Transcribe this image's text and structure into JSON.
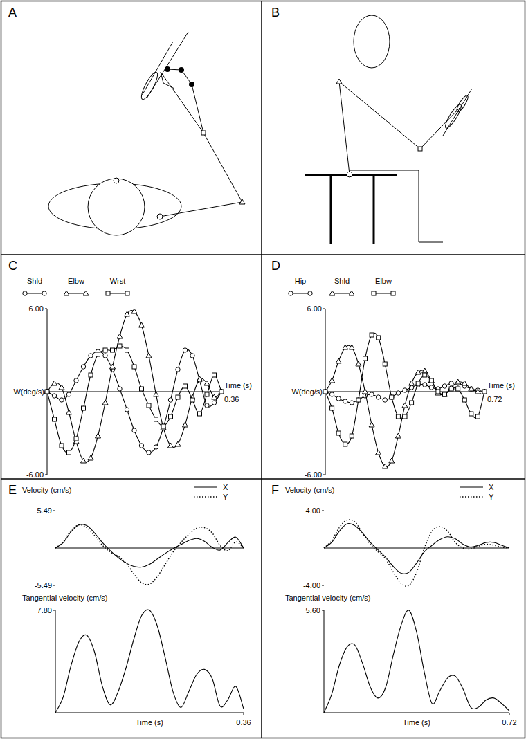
{
  "diagrams": [
    {
      "label": "A"
    },
    {
      "label": "B"
    }
  ],
  "chart_data": [
    {
      "type": "line",
      "title": "C",
      "x_label": "Time (s)",
      "y_label": "W(deg/s)",
      "x": [
        0,
        0.015,
        0.03,
        0.045,
        0.06,
        0.075,
        0.09,
        0.105,
        0.12,
        0.135,
        0.15,
        0.165,
        0.18,
        0.195,
        0.21,
        0.225,
        0.24,
        0.255,
        0.27,
        0.285,
        0.3,
        0.315,
        0.33,
        0.345,
        0.36
      ],
      "xlim": [
        0,
        0.36
      ],
      "xticks": [
        0.36
      ],
      "ylim": [
        -6,
        6
      ],
      "yticks": [
        {
          "value": 6,
          "label": "6.00"
        },
        {
          "value": -6,
          "label": "-6.00"
        }
      ],
      "legend": "top-left",
      "series": [
        {
          "name": "Shld",
          "color": "#000000",
          "marker": "circle",
          "line_style": "solid",
          "values": [
            0,
            -0.3,
            -0.6,
            -0.2,
            0.8,
            1.8,
            2.6,
            2.9,
            2.6,
            1.6,
            0.2,
            -1.3,
            -2.8,
            -3.9,
            -4.4,
            -4.0,
            -2.6,
            -0.6,
            1.6,
            3.0,
            2.6,
            0.8,
            -1.0,
            -0.8,
            0
          ]
        },
        {
          "name": "Elbw",
          "color": "#000000",
          "marker": "triangle",
          "line_style": "solid",
          "values": [
            0,
            0.6,
            0.3,
            -1.5,
            -3.6,
            -5.0,
            -4.8,
            -3.2,
            -0.8,
            1.8,
            4.0,
            5.6,
            5.8,
            4.8,
            2.6,
            -0.2,
            -2.6,
            -3.9,
            -3.8,
            -2.4,
            -0.4,
            0.9,
            0.6,
            -0.4,
            0
          ]
        },
        {
          "name": "Wrst",
          "color": "#000000",
          "marker": "square",
          "line_style": "solid",
          "values": [
            0,
            -2.0,
            -3.9,
            -4.4,
            -3.4,
            -1.2,
            1.2,
            2.7,
            3.0,
            3.0,
            3.3,
            3.0,
            1.8,
            0.2,
            -1.0,
            -2.0,
            -2.5,
            -1.8,
            -0.4,
            0.4,
            -0.6,
            -1.6,
            -0.2,
            1.2,
            0
          ]
        }
      ]
    },
    {
      "type": "line",
      "title": "D",
      "x_label": "Time (s)",
      "y_label": "W(deg/s)",
      "x": [
        0,
        0.03,
        0.06,
        0.09,
        0.12,
        0.15,
        0.18,
        0.21,
        0.24,
        0.27,
        0.3,
        0.33,
        0.36,
        0.39,
        0.42,
        0.45,
        0.48,
        0.51,
        0.54,
        0.57,
        0.6,
        0.63,
        0.66,
        0.69,
        0.72
      ],
      "xlim": [
        0,
        0.72
      ],
      "xticks": [
        0.72
      ],
      "ylim": [
        -6,
        6
      ],
      "yticks": [
        {
          "value": 6,
          "label": "6.00"
        },
        {
          "value": -6,
          "label": "-6.00"
        }
      ],
      "legend": "top-left",
      "series": [
        {
          "name": "Hip",
          "color": "#000000",
          "marker": "circle",
          "line_style": "solid",
          "values": [
            0,
            -0.2,
            -0.5,
            -0.7,
            -0.8,
            -0.6,
            -0.3,
            -0.2,
            -0.4,
            -0.6,
            -0.4,
            -0.1,
            0.1,
            0.3,
            0.5,
            0.5,
            0.3,
            0.2,
            0.4,
            0.6,
            0.6,
            0.4,
            0.2,
            0.1,
            0
          ]
        },
        {
          "name": "Shld",
          "color": "#000000",
          "marker": "triangle",
          "line_style": "solid",
          "values": [
            0,
            0.8,
            2.2,
            3.2,
            3.2,
            2.0,
            0.0,
            -2.4,
            -4.4,
            -5.4,
            -5.0,
            -3.2,
            -1.0,
            0.6,
            1.4,
            1.5,
            0.8,
            -0.1,
            -0.2,
            0.3,
            0.7,
            0.6,
            0.2,
            0.0,
            0
          ]
        },
        {
          "name": "Elbw",
          "color": "#000000",
          "marker": "square",
          "line_style": "solid",
          "values": [
            0,
            -1.2,
            -3.0,
            -3.8,
            -3.2,
            -0.6,
            2.4,
            4.1,
            3.9,
            2.0,
            -0.4,
            -1.8,
            -1.8,
            -0.8,
            0.6,
            1.2,
            0.8,
            0.0,
            -0.2,
            0.2,
            0.2,
            -0.6,
            -1.6,
            -1.8,
            0
          ]
        }
      ]
    },
    {
      "type": "line",
      "title": "E",
      "y_label": "Velocity (cm/s)",
      "x": [
        0,
        0.015,
        0.03,
        0.045,
        0.06,
        0.075,
        0.09,
        0.105,
        0.12,
        0.135,
        0.15,
        0.165,
        0.18,
        0.195,
        0.21,
        0.225,
        0.24,
        0.255,
        0.27,
        0.285,
        0.3,
        0.315,
        0.33,
        0.345,
        0.36
      ],
      "xlim": [
        0,
        0.36
      ],
      "ylim": [
        -5.49,
        5.49
      ],
      "yticks": [
        {
          "value": 5.49,
          "label": "5.49"
        },
        {
          "value": -5.49,
          "label": "-5.49"
        }
      ],
      "tick_labels": "y",
      "legend": "top-right",
      "series": [
        {
          "name": "X",
          "color": "#000000",
          "line_style": "solid",
          "values": [
            0,
            0.8,
            2.4,
            3.4,
            3.3,
            2.2,
            0.8,
            -0.4,
            -1.4,
            -2.2,
            -2.7,
            -2.8,
            -2.4,
            -1.6,
            -0.8,
            -0.1,
            0.5,
            1.1,
            1.4,
            1.0,
            0.1,
            -0.3,
            0.8,
            1.6,
            0
          ]
        },
        {
          "name": "Y",
          "color": "#000000",
          "line_style": "dotted",
          "values": [
            0,
            0.9,
            2.6,
            3.4,
            3.0,
            1.8,
            0.4,
            -0.6,
            -1.2,
            -2.2,
            -3.8,
            -5.1,
            -5.3,
            -4.2,
            -2.4,
            -0.6,
            0.8,
            2.0,
            2.9,
            3.0,
            2.2,
            0.4,
            -0.4,
            0.9,
            0
          ]
        }
      ]
    },
    {
      "type": "line",
      "x_label": "Time (s)",
      "y_label": "Tangential velocity (cm/s)",
      "x": [
        0,
        0.015,
        0.03,
        0.045,
        0.06,
        0.075,
        0.09,
        0.105,
        0.12,
        0.135,
        0.15,
        0.165,
        0.18,
        0.195,
        0.21,
        0.225,
        0.24,
        0.255,
        0.27,
        0.285,
        0.3,
        0.315,
        0.33,
        0.345,
        0.36
      ],
      "xlim": [
        0,
        0.36
      ],
      "xticks": [
        0.36
      ],
      "ylim": [
        0,
        7.8
      ],
      "yticks": [
        {
          "value": 7.8,
          "label": "7.80"
        }
      ],
      "series": [
        {
          "color": "#000000",
          "line_style": "solid",
          "values": [
            0,
            1.2,
            3.6,
            5.4,
            5.9,
            4.6,
            2.0,
            0.6,
            1.6,
            3.4,
            5.6,
            7.4,
            7.8,
            6.6,
            4.2,
            1.6,
            0.4,
            1.6,
            2.9,
            3.3,
            2.6,
            0.5,
            1.0,
            2.0,
            0.3
          ]
        }
      ]
    },
    {
      "type": "line",
      "title": "F",
      "y_label": "Velocity (cm/s)",
      "x": [
        0,
        0.03,
        0.06,
        0.09,
        0.12,
        0.15,
        0.18,
        0.21,
        0.24,
        0.27,
        0.3,
        0.33,
        0.36,
        0.39,
        0.42,
        0.45,
        0.48,
        0.51,
        0.54,
        0.57,
        0.6,
        0.63,
        0.66,
        0.69,
        0.72
      ],
      "xlim": [
        0,
        0.72
      ],
      "ylim": [
        -4,
        4
      ],
      "yticks": [
        {
          "value": 4,
          "label": "4.00"
        },
        {
          "value": -4,
          "label": "-4.00"
        }
      ],
      "tick_labels": "y",
      "legend": "top-right",
      "series": [
        {
          "name": "X",
          "color": "#000000",
          "line_style": "solid",
          "values": [
            0,
            0.6,
            1.8,
            2.6,
            2.4,
            1.6,
            0.6,
            -0.2,
            -1.0,
            -2.0,
            -2.7,
            -2.6,
            -1.6,
            -0.4,
            0.3,
            0.9,
            1.2,
            1.0,
            0.4,
            0.1,
            0.3,
            0.6,
            0.6,
            0.3,
            0
          ]
        },
        {
          "name": "Y",
          "color": "#000000",
          "line_style": "dotted",
          "values": [
            0,
            0.8,
            2.2,
            3.0,
            2.8,
            1.6,
            0.4,
            -0.4,
            -1.2,
            -2.6,
            -3.8,
            -4.0,
            -2.6,
            0.0,
            1.8,
            2.3,
            1.8,
            0.6,
            0.0,
            -0.1,
            0.2,
            0.4,
            0.3,
            0.1,
            0
          ]
        }
      ]
    },
    {
      "type": "line",
      "x_label": "Time (s)",
      "y_label": "Tangential velocity (cm/s)",
      "x": [
        0,
        0.03,
        0.06,
        0.09,
        0.12,
        0.15,
        0.18,
        0.21,
        0.24,
        0.27,
        0.3,
        0.33,
        0.36,
        0.39,
        0.42,
        0.45,
        0.48,
        0.51,
        0.54,
        0.57,
        0.6,
        0.63,
        0.66,
        0.69,
        0.72
      ],
      "xlim": [
        0,
        0.72
      ],
      "xticks": [
        0.72
      ],
      "ylim": [
        0,
        5.6
      ],
      "yticks": [
        {
          "value": 5.6,
          "label": "5.60"
        }
      ],
      "series": [
        {
          "color": "#000000",
          "line_style": "solid",
          "values": [
            0,
            1.0,
            2.6,
            3.6,
            3.7,
            2.7,
            1.4,
            0.8,
            1.4,
            3.2,
            4.8,
            5.6,
            4.4,
            2.2,
            0.5,
            1.2,
            1.9,
            2.0,
            1.3,
            0.3,
            0.3,
            0.7,
            0.8,
            0.5,
            0.1
          ]
        }
      ]
    }
  ]
}
